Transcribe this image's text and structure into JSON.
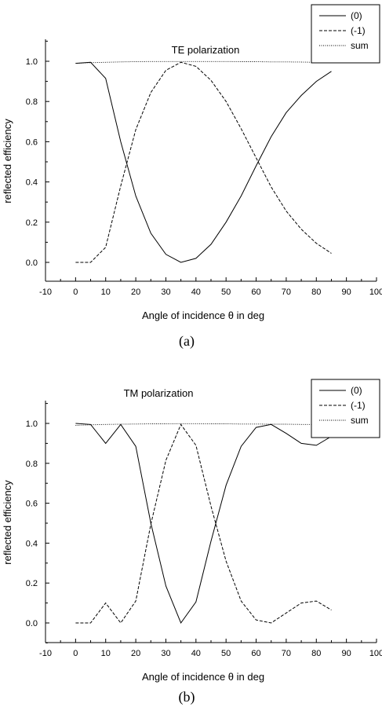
{
  "chart_data": [
    {
      "type": "line",
      "panel_label": "(a)",
      "title": "TE polarization",
      "xlabel": "Angle of incidence θ in deg",
      "ylabel": "reflected efficiency",
      "xlim": [
        -10,
        100
      ],
      "ylim": [
        -0.1,
        1.1
      ],
      "xticks": [
        "-10",
        "0",
        "10",
        "20",
        "30",
        "40",
        "50",
        "60",
        "70",
        "80",
        "90",
        "100"
      ],
      "yticks": [
        "0.0",
        "0.2",
        "0.4",
        "0.6",
        "0.8",
        "1.0"
      ],
      "legend_position": "top-right",
      "grid": false,
      "x": [
        0,
        5,
        10,
        15,
        20,
        25,
        30,
        35,
        40,
        45,
        50,
        55,
        60,
        65,
        70,
        75,
        80,
        85
      ],
      "series": [
        {
          "name": "(0)",
          "style": "solid",
          "values": [
            0.99,
            0.995,
            0.915,
            0.6,
            0.33,
            0.145,
            0.04,
            0.0,
            0.02,
            0.09,
            0.2,
            0.33,
            0.48,
            0.625,
            0.745,
            0.83,
            0.9,
            0.95
          ]
        },
        {
          "name": "(-1)",
          "style": "dashed",
          "values": [
            0.0,
            0.0,
            0.075,
            0.38,
            0.66,
            0.845,
            0.955,
            0.995,
            0.975,
            0.905,
            0.8,
            0.665,
            0.52,
            0.375,
            0.255,
            0.165,
            0.095,
            0.045
          ]
        },
        {
          "name": "sum",
          "style": "dotted",
          "values": [
            0.99,
            0.993,
            0.995,
            0.997,
            0.998,
            0.999,
            0.999,
            0.999,
            0.999,
            0.999,
            0.999,
            0.998,
            0.998,
            0.997,
            0.997,
            0.996,
            0.995,
            0.995
          ]
        }
      ]
    },
    {
      "type": "line",
      "panel_label": "(b)",
      "title": "TM polarization",
      "xlabel": "Angle of incidence θ in deg",
      "ylabel": "reflected efficiency",
      "xlim": [
        -10,
        100
      ],
      "ylim": [
        -0.1,
        1.1
      ],
      "xticks": [
        "-10",
        "0",
        "10",
        "20",
        "30",
        "40",
        "50",
        "60",
        "70",
        "80",
        "90",
        "100"
      ],
      "yticks": [
        "0.0",
        "0.2",
        "0.4",
        "0.6",
        "0.8",
        "1.0"
      ],
      "legend_position": "top-right",
      "grid": false,
      "x": [
        0,
        5,
        10,
        15,
        20,
        25,
        30,
        35,
        40,
        45,
        50,
        55,
        60,
        65,
        70,
        75,
        80,
        85
      ],
      "series": [
        {
          "name": "(0)",
          "style": "solid",
          "values": [
            1.0,
            0.995,
            0.9,
            0.995,
            0.885,
            0.5,
            0.185,
            0.0,
            0.105,
            0.41,
            0.69,
            0.885,
            0.98,
            0.995,
            0.95,
            0.9,
            0.89,
            0.935
          ]
        },
        {
          "name": "(-1)",
          "style": "dashed",
          "values": [
            0.0,
            0.0,
            0.1,
            0.0,
            0.11,
            0.495,
            0.815,
            0.995,
            0.89,
            0.585,
            0.31,
            0.11,
            0.015,
            0.0,
            0.05,
            0.1,
            0.11,
            0.065
          ]
        },
        {
          "name": "sum",
          "style": "dotted",
          "values": [
            0.99,
            0.993,
            0.995,
            0.996,
            0.997,
            0.998,
            0.998,
            0.999,
            0.999,
            0.998,
            0.998,
            0.997,
            0.997,
            0.996,
            0.996,
            0.995,
            0.995,
            0.995
          ]
        }
      ]
    }
  ]
}
